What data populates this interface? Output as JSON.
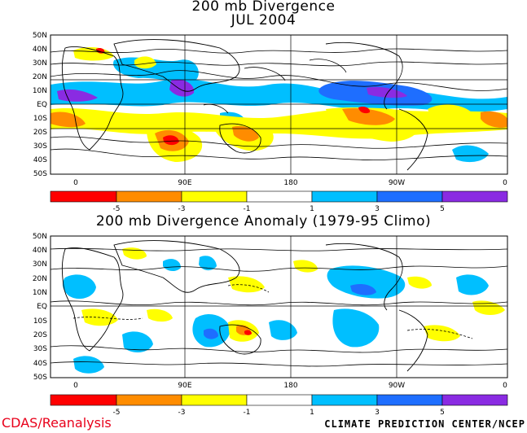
{
  "panels": [
    {
      "title_line1": "200 mb Divergence",
      "title_line2": "JUL 2004",
      "lat_labels": [
        "50N",
        "40N",
        "30N",
        "20N",
        "10N",
        "EQ",
        "10S",
        "20S",
        "30S",
        "40S",
        "50S"
      ],
      "lon_labels": [
        "0",
        "90E",
        "180",
        "90W",
        "0"
      ]
    },
    {
      "title_line1": "200 mb Divergence Anomaly (1979-95 Climo)",
      "lat_labels": [
        "50N",
        "40N",
        "30N",
        "20N",
        "10N",
        "EQ",
        "10S",
        "20S",
        "30S",
        "40S",
        "50S"
      ],
      "lon_labels": [
        "0",
        "90E",
        "180",
        "90W",
        "0"
      ]
    }
  ],
  "colorbar": {
    "colors": [
      "#ff0000",
      "#ff8c00",
      "#ffff00",
      "#ffffff",
      "#00bfff",
      "#1e6eff",
      "#8a2be2"
    ],
    "labels": [
      "-5",
      "-3",
      "-1",
      "1",
      "3",
      "5"
    ]
  },
  "credits": {
    "left": "CDAS/Reanalysis",
    "right": "CLIMATE PREDICTION CENTER/NCEP"
  }
}
